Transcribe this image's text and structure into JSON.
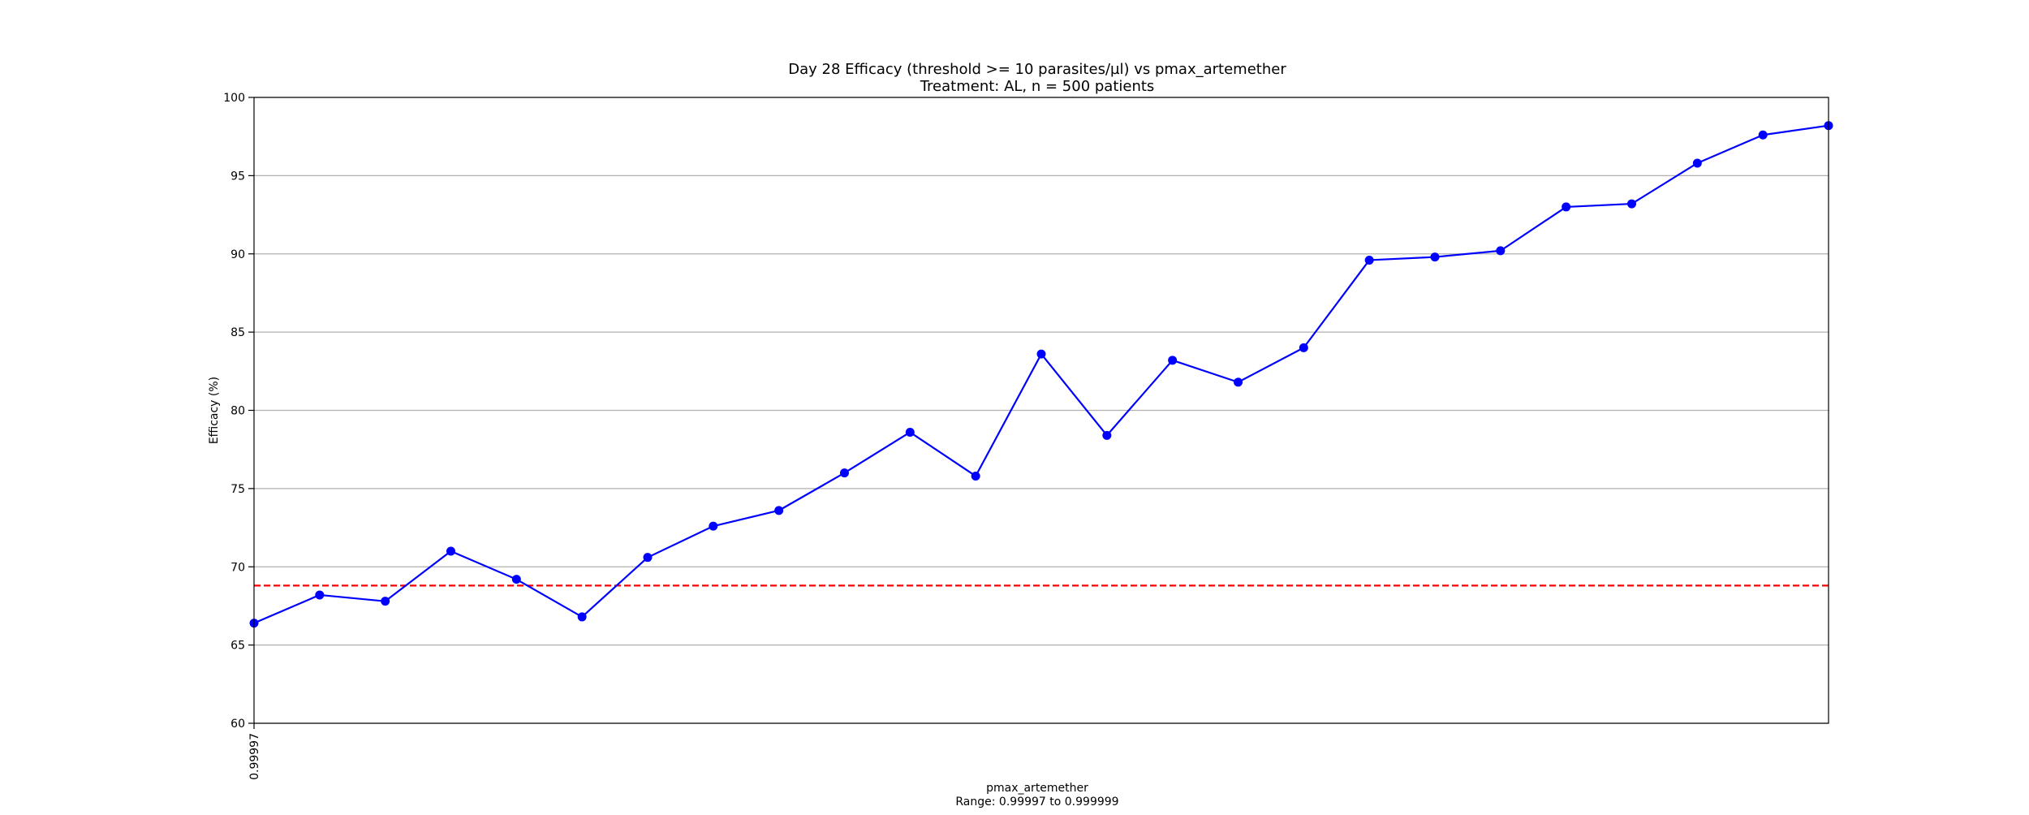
{
  "chart_data": {
    "type": "line",
    "title": "Day 28 Efficacy (threshold >= 10 parasites/µl) vs pmax_artemether",
    "subtitle": "Treatment: AL, n = 500 patients",
    "xlabel": "pmax_artemether",
    "xlabel_note": "Range: 0.99997 to 0.999999",
    "ylabel": "Efficacy (%)",
    "ylim": [
      60,
      100
    ],
    "yticks": [
      60,
      65,
      70,
      75,
      80,
      85,
      90,
      95,
      100
    ],
    "x_tick_labels": [
      "0.99997"
    ],
    "grid": "horizontal",
    "series": [
      {
        "color": "#0000ff",
        "marker": "circle",
        "values": [
          66.4,
          68.2,
          67.8,
          71.0,
          69.2,
          66.8,
          70.6,
          72.6,
          73.6,
          76.0,
          78.6,
          75.8,
          83.6,
          78.4,
          83.2,
          81.8,
          84.0,
          89.6,
          89.8,
          90.2,
          93.0,
          93.2,
          95.8,
          97.6,
          98.2
        ]
      }
    ],
    "reference_line": {
      "y": 68.8,
      "color": "#ff0000",
      "style": "dashed"
    }
  }
}
